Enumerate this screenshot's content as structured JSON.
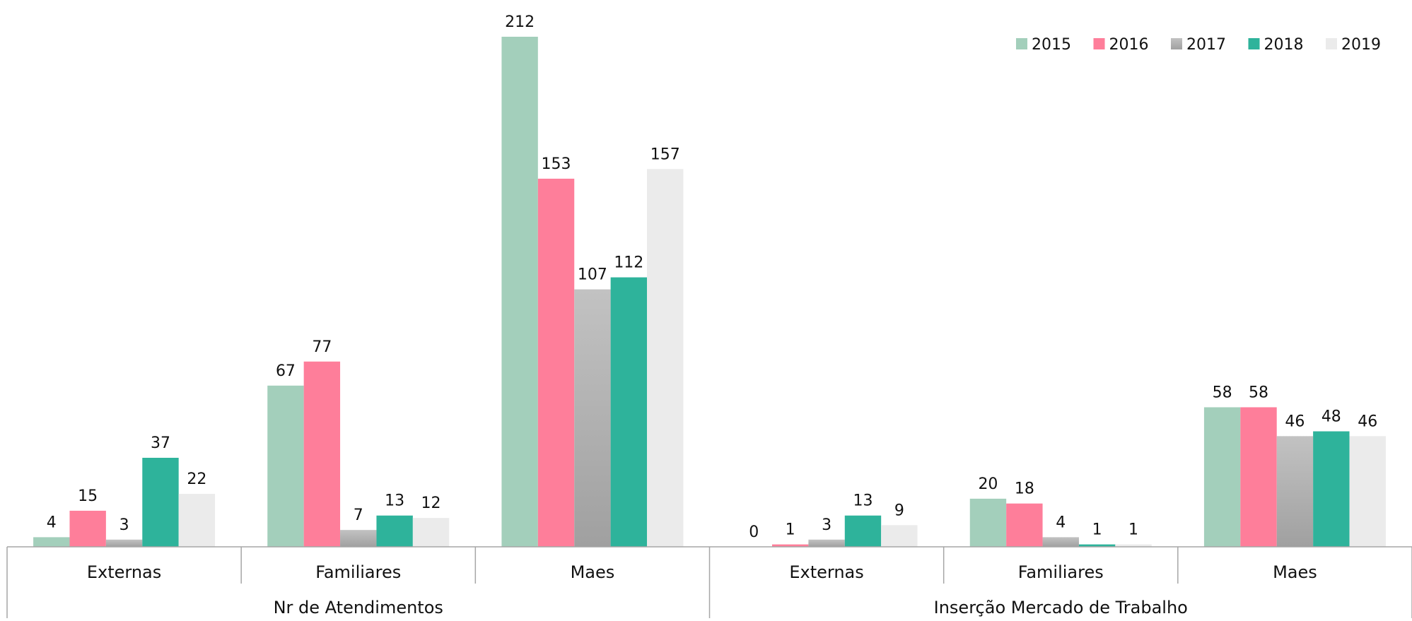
{
  "chart_data": {
    "type": "bar",
    "groups": [
      {
        "label": "Nr de Atendimentos",
        "categories": [
          "Externas",
          "Familiares",
          "Maes"
        ]
      },
      {
        "label": "Inserção Mercado de Trabalho",
        "categories": [
          "Externas",
          "Familiares",
          "Maes"
        ]
      }
    ],
    "series": [
      {
        "name": "2015",
        "color": "#a3cfbb",
        "values": [
          4,
          67,
          212,
          0,
          20,
          58
        ]
      },
      {
        "name": "2016",
        "color": "#fe7e9a",
        "values": [
          15,
          77,
          153,
          1,
          18,
          58
        ]
      },
      {
        "name": "2017",
        "color": "#b0b0b0",
        "values": [
          3,
          7,
          107,
          3,
          4,
          46
        ]
      },
      {
        "name": "2018",
        "color": "#2eb39b",
        "values": [
          37,
          13,
          112,
          13,
          1,
          48
        ]
      },
      {
        "name": "2019",
        "color": "#ebebeb",
        "values": [
          22,
          12,
          157,
          9,
          1,
          46
        ]
      }
    ],
    "ylim": [
      0,
      212
    ],
    "grid": false,
    "legend": "top-right",
    "data_labels": true
  }
}
